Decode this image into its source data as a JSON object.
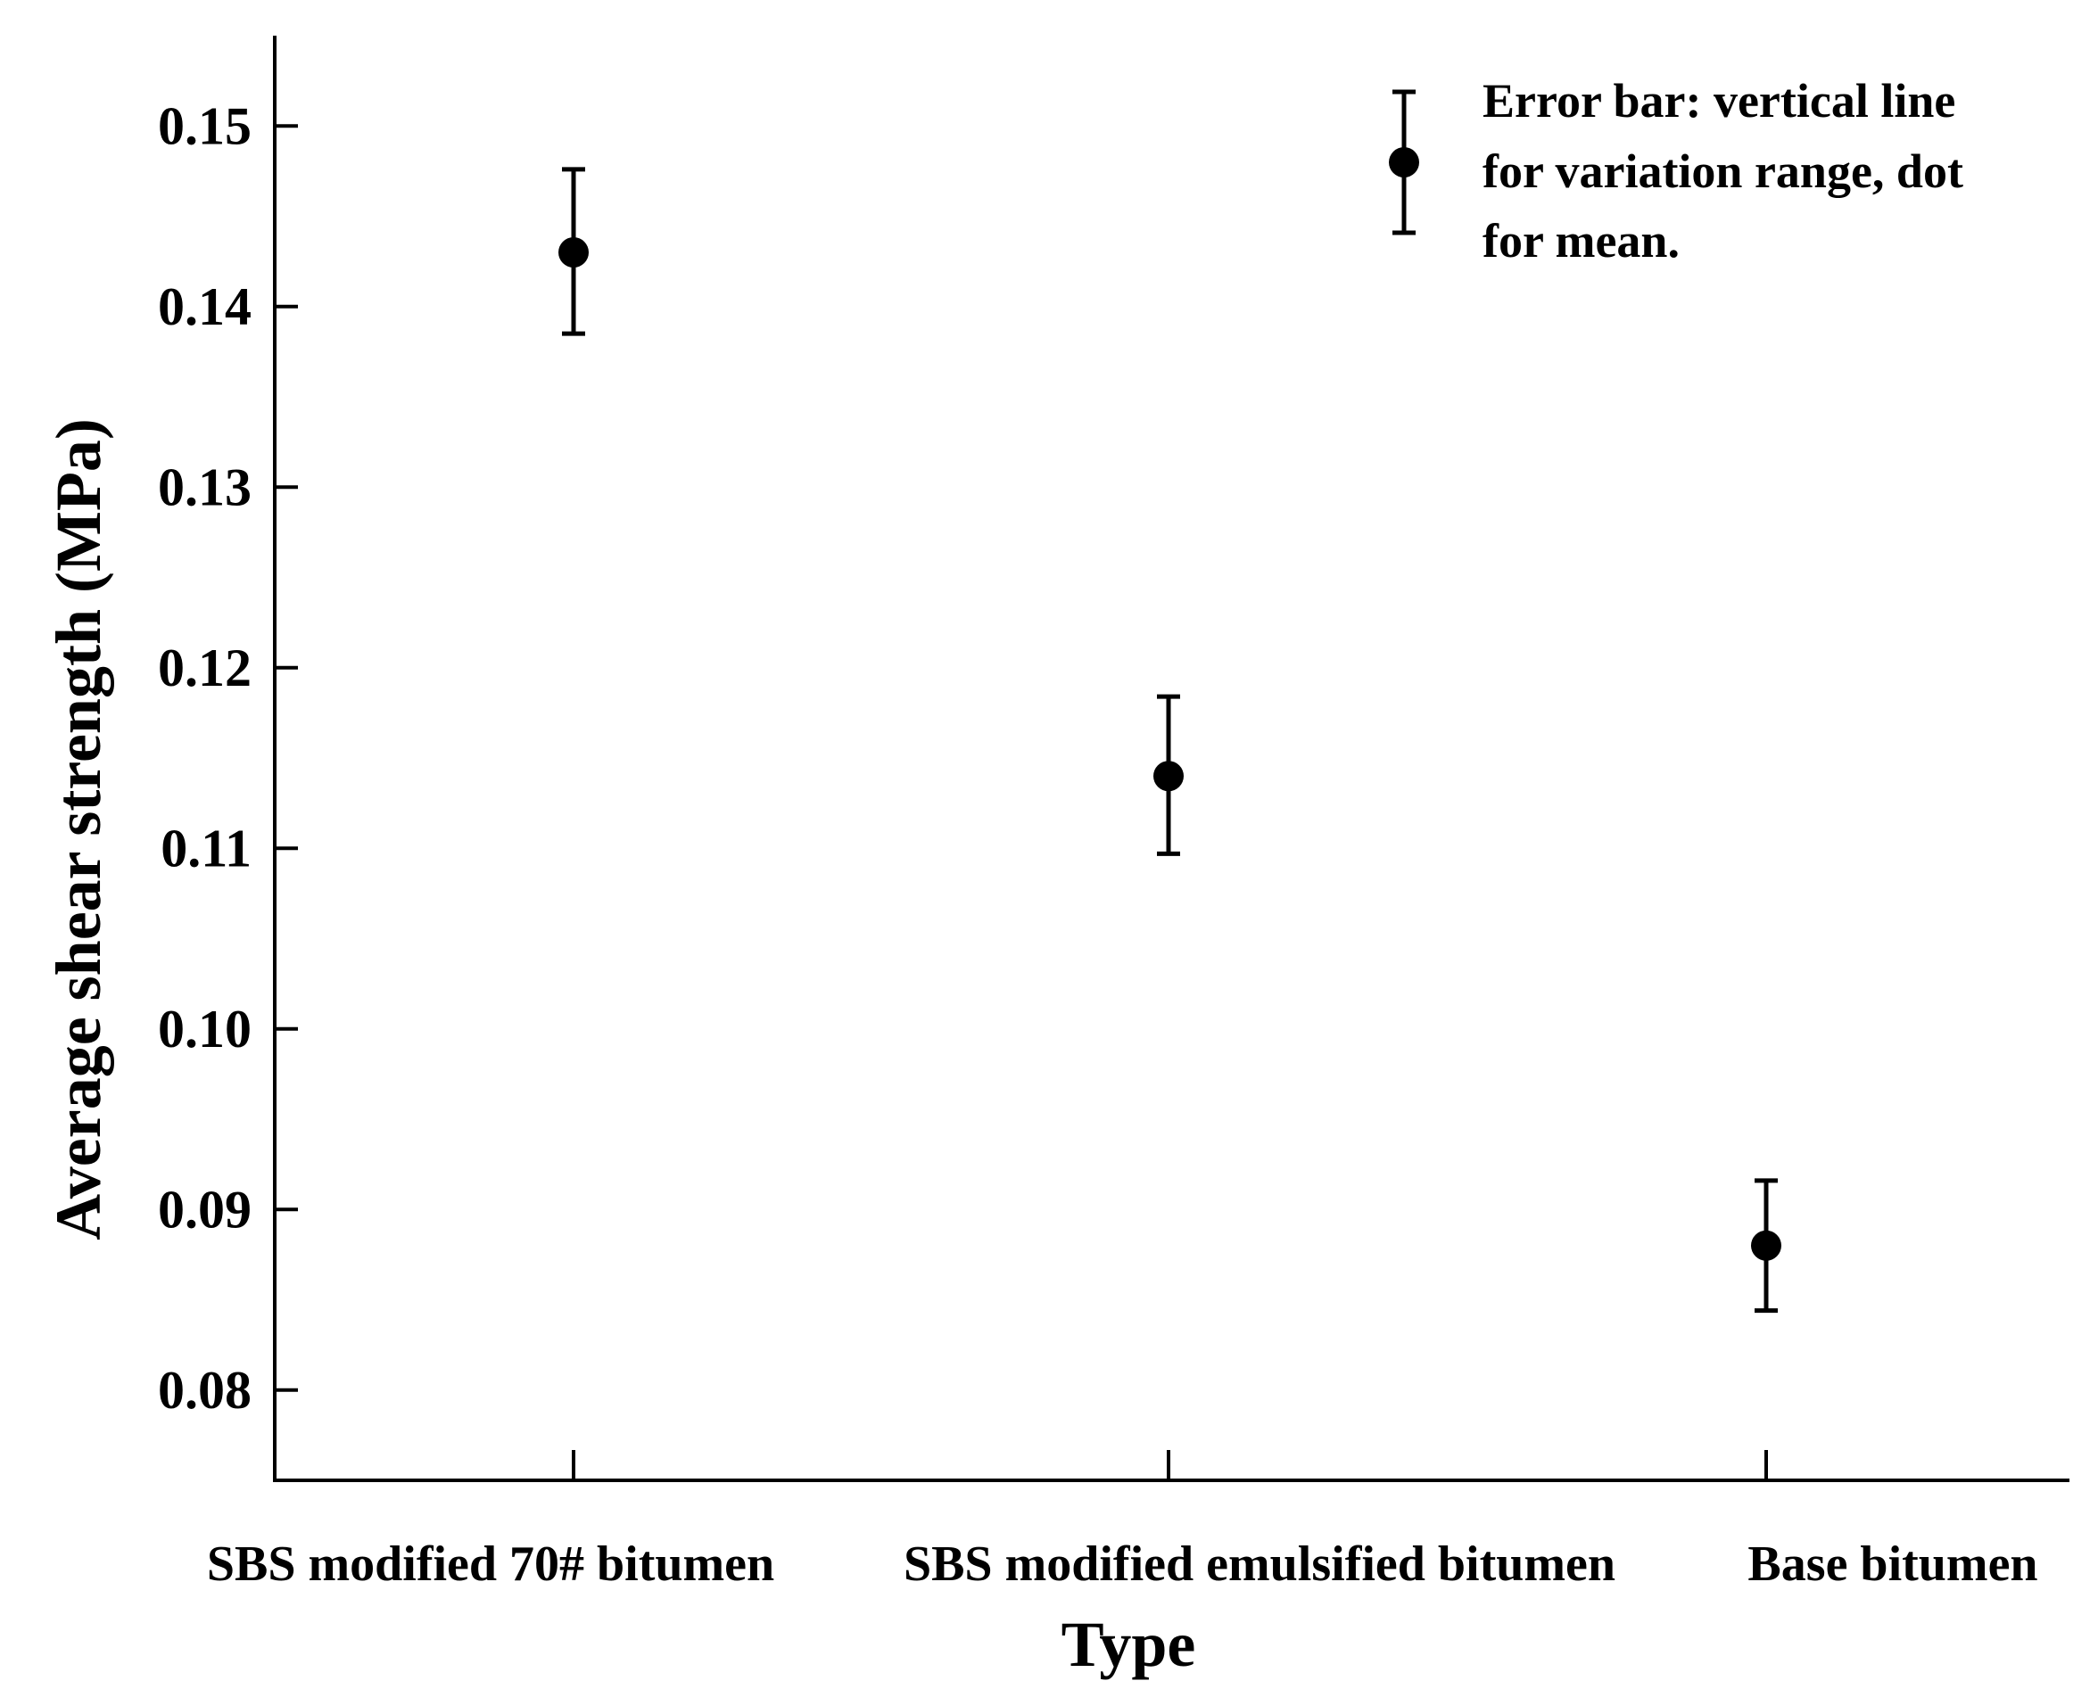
{
  "chart_data": {
    "type": "scatter",
    "xlabel": "Type",
    "ylabel": "Average shear strength (MPa)",
    "categories": [
      "SBS modified 70# bitumen",
      "SBS modified emulsified bitumen",
      "Base bitumen"
    ],
    "values": [
      0.143,
      0.114,
      0.088
    ],
    "error_low": [
      0.1385,
      0.1097,
      0.0844
    ],
    "error_high": [
      0.1476,
      0.1184,
      0.0916
    ],
    "ylim": [
      0.075,
      0.155
    ],
    "yticks": [
      "0.08",
      "0.09",
      "0.10",
      "0.11",
      "0.12",
      "0.13",
      "0.14",
      "0.15"
    ],
    "grid": false,
    "legend_position": "top-right",
    "legend_text": [
      "Error bar: vertical line",
      "for variation range, dot",
      "for mean."
    ],
    "color": "#000000"
  }
}
